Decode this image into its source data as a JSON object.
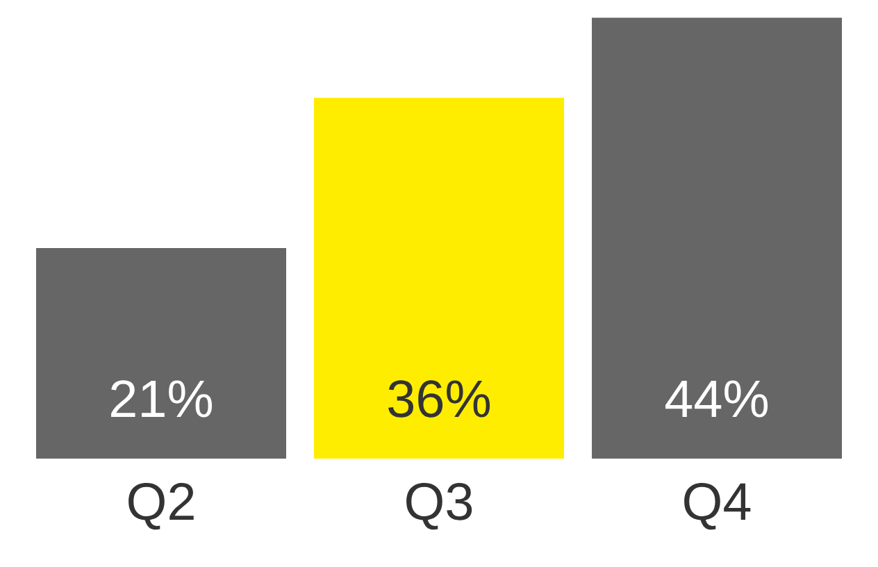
{
  "chart_data": {
    "type": "bar",
    "categories": [
      "Q2",
      "Q3",
      "Q4"
    ],
    "values": [
      21,
      36,
      44
    ],
    "colors": [
      "#666666",
      "#ffed00",
      "#666666"
    ],
    "value_labels": [
      "21%",
      "36%",
      "44%"
    ]
  }
}
